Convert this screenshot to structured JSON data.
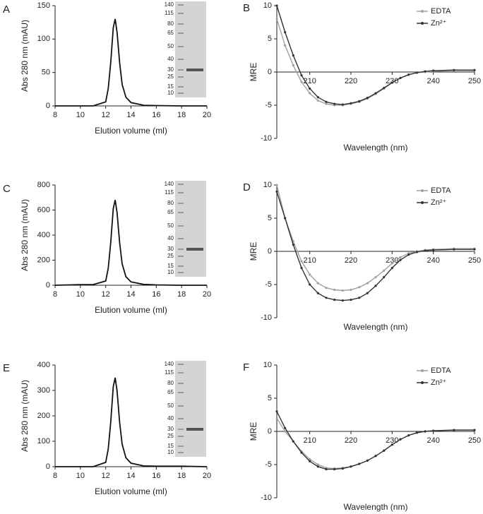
{
  "chart_data": [
    {
      "type": "line",
      "label": "A",
      "xlabel": "Elution volume (ml)",
      "ylabel": "Abs 280 nm (mAU)",
      "xlim": [
        8,
        20
      ],
      "ylim": [
        0,
        150
      ],
      "xticks": [
        8,
        10,
        12,
        14,
        16,
        18,
        20
      ],
      "yticks": [
        0,
        50,
        100,
        150
      ],
      "x": [
        8,
        10,
        11,
        12,
        12.2,
        12.4,
        12.6,
        12.75,
        12.9,
        13.1,
        13.3,
        13.6,
        14,
        15,
        16,
        18,
        20
      ],
      "values": [
        0,
        0,
        0,
        6,
        26,
        65,
        117,
        130,
        110,
        65,
        32,
        13,
        5,
        1,
        0.5,
        0,
        0
      ],
      "color": "#111111",
      "gel_markers": [
        140,
        115,
        80,
        65,
        50,
        40,
        30,
        25,
        15,
        10
      ]
    },
    {
      "type": "line",
      "label": "B",
      "xlabel": "Wavelength (nm)",
      "ylabel": "MRE",
      "xlim": [
        202,
        250
      ],
      "ylim": [
        -10,
        10
      ],
      "xticks": [
        210,
        220,
        230,
        240,
        250
      ],
      "yticks": [
        -10,
        -5,
        0,
        5,
        10
      ],
      "x": [
        202,
        204,
        206,
        208,
        210,
        212,
        214,
        216,
        218,
        220,
        222,
        224,
        226,
        228,
        230,
        232,
        234,
        236,
        238,
        240,
        245,
        250
      ],
      "legend": "upper right",
      "series": [
        {
          "name": "EDTA",
          "color": "#a0a0a0",
          "values": [
            8,
            4,
            1,
            -1.5,
            -3.2,
            -4.3,
            -4.8,
            -5,
            -5,
            -4.8,
            -4.5,
            -4,
            -3.3,
            -2.5,
            -1.6,
            -0.9,
            -0.4,
            -0.1,
            0,
            0.1,
            0.2,
            0.2
          ]
        },
        {
          "name": "Zn²⁺",
          "color": "#333333",
          "values": [
            10,
            6,
            2.5,
            -0.5,
            -2.5,
            -3.8,
            -4.5,
            -4.8,
            -4.9,
            -4.7,
            -4.4,
            -3.9,
            -3.2,
            -2.4,
            -1.6,
            -0.9,
            -0.4,
            -0.1,
            0.1,
            0.2,
            0.3,
            0.3
          ]
        }
      ]
    },
    {
      "type": "line",
      "label": "C",
      "xlabel": "Elution volume (ml)",
      "ylabel": "Abs 280 nm (mAU)",
      "xlim": [
        8,
        20
      ],
      "ylim": [
        0,
        800
      ],
      "xticks": [
        8,
        10,
        12,
        14,
        16,
        18,
        20
      ],
      "yticks": [
        0,
        200,
        400,
        600,
        800
      ],
      "x": [
        8,
        10,
        11,
        12,
        12.2,
        12.4,
        12.6,
        12.75,
        12.9,
        13.1,
        13.3,
        13.6,
        14,
        15,
        16,
        18,
        20
      ],
      "values": [
        0,
        5,
        5,
        34,
        136,
        340,
        612,
        680,
        578,
        340,
        170,
        68,
        27,
        7,
        3,
        0,
        0
      ],
      "color": "#111111",
      "gel_markers": [
        140,
        115,
        80,
        65,
        50,
        40,
        30,
        25,
        15,
        10
      ]
    },
    {
      "type": "line",
      "label": "D",
      "xlabel": "Wavelength (nm)",
      "ylabel": "MRE",
      "xlim": [
        202,
        250
      ],
      "ylim": [
        -10,
        10
      ],
      "xticks": [
        210,
        220,
        230,
        240,
        250
      ],
      "yticks": [
        -10,
        -5,
        0,
        5,
        10
      ],
      "x": [
        202,
        204,
        206,
        208,
        210,
        212,
        214,
        216,
        218,
        220,
        222,
        224,
        226,
        228,
        230,
        232,
        234,
        236,
        238,
        240,
        245,
        250
      ],
      "legend": "upper right",
      "series": [
        {
          "name": "EDTA",
          "color": "#a0a0a0",
          "values": [
            10,
            5,
            1.5,
            -1.5,
            -3.5,
            -4.8,
            -5.5,
            -5.8,
            -5.9,
            -5.8,
            -5.4,
            -4.8,
            -3.9,
            -2.9,
            -1.8,
            -0.9,
            -0.3,
            0,
            0.2,
            0.3,
            0.4,
            0.4
          ]
        },
        {
          "name": "Zn²⁺",
          "color": "#333333",
          "values": [
            9,
            5,
            1,
            -2.5,
            -5,
            -6.3,
            -7,
            -7.3,
            -7.4,
            -7.3,
            -7,
            -6.3,
            -5.2,
            -3.9,
            -2.5,
            -1.3,
            -0.5,
            -0.1,
            0.1,
            0.2,
            0.3,
            0.3
          ]
        }
      ]
    },
    {
      "type": "line",
      "label": "E",
      "xlabel": "Elution volume (ml)",
      "ylabel": "Abs 280 nm (mAU)",
      "xlim": [
        8,
        20
      ],
      "ylim": [
        0,
        400
      ],
      "xticks": [
        8,
        10,
        12,
        14,
        16,
        18,
        20
      ],
      "yticks": [
        0,
        100,
        200,
        300,
        400
      ],
      "x": [
        8,
        10,
        11,
        12,
        12.2,
        12.4,
        12.6,
        12.75,
        12.9,
        13.1,
        13.3,
        13.6,
        14,
        15,
        16,
        18,
        20
      ],
      "values": [
        0,
        0,
        0,
        17,
        70,
        175,
        315,
        350,
        298,
        175,
        88,
        35,
        14,
        3,
        2,
        2,
        0
      ],
      "color": "#111111",
      "gel_markers": [
        140,
        115,
        80,
        65,
        50,
        40,
        30,
        25,
        15,
        10
      ]
    },
    {
      "type": "line",
      "label": "F",
      "xlabel": "Wavelength (nm)",
      "ylabel": "MRE",
      "xlim": [
        202,
        250
      ],
      "ylim": [
        -10,
        10
      ],
      "xticks": [
        210,
        220,
        230,
        240,
        250
      ],
      "yticks": [
        -10,
        -5,
        0,
        5,
        10
      ],
      "x": [
        202,
        204,
        206,
        208,
        210,
        212,
        214,
        216,
        218,
        220,
        222,
        224,
        226,
        228,
        230,
        232,
        234,
        236,
        238,
        240,
        245,
        250
      ],
      "legend": "upper right",
      "series": [
        {
          "name": "EDTA",
          "color": "#a0a0a0",
          "values": [
            2,
            0,
            -1.5,
            -3,
            -4.2,
            -5,
            -5.5,
            -5.6,
            -5.5,
            -5.3,
            -4.9,
            -4.4,
            -3.7,
            -2.9,
            -2,
            -1.2,
            -0.6,
            -0.2,
            0,
            0.1,
            0.2,
            0.2
          ]
        },
        {
          "name": "Zn²⁺",
          "color": "#333333",
          "values": [
            3,
            0.5,
            -1.5,
            -3.2,
            -4.5,
            -5.3,
            -5.7,
            -5.7,
            -5.6,
            -5.3,
            -4.9,
            -4.4,
            -3.7,
            -2.9,
            -2,
            -1.2,
            -0.6,
            -0.2,
            0,
            0.1,
            0.2,
            0.2
          ]
        }
      ]
    }
  ]
}
